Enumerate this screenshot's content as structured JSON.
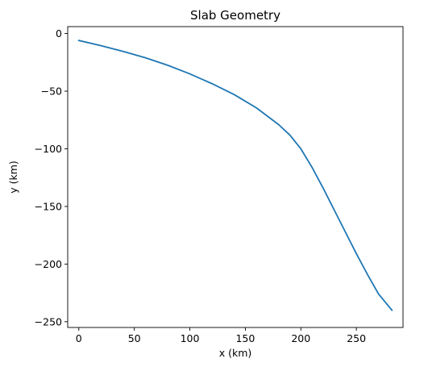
{
  "chart_data": {
    "type": "line",
    "title": "Slab Geometry",
    "xlabel": "x (km)",
    "ylabel": "y (km)",
    "xlim": [
      -10,
      292
    ],
    "ylim": [
      -255,
      6
    ],
    "xticks": [
      0,
      50,
      100,
      150,
      200,
      250
    ],
    "yticks": [
      0,
      -50,
      -100,
      -150,
      -200,
      -250
    ],
    "xtick_labels": [
      "0",
      "50",
      "100",
      "150",
      "200",
      "250"
    ],
    "ytick_labels": [
      "0",
      "−50",
      "−100",
      "−150",
      "−200",
      "−250"
    ],
    "grid": false,
    "series": [
      {
        "color": "#1f77b4",
        "x": [
          0,
          20,
          40,
          60,
          80,
          100,
          120,
          140,
          160,
          180,
          190,
          200,
          210,
          220,
          230,
          240,
          250,
          260,
          270,
          282
        ],
        "y": [
          -6,
          -10.5,
          -15.5,
          -21,
          -27.5,
          -35,
          -43.5,
          -53,
          -64.5,
          -79,
          -88,
          -100,
          -116,
          -134,
          -153,
          -172,
          -191,
          -209,
          -226,
          -240
        ]
      }
    ]
  }
}
